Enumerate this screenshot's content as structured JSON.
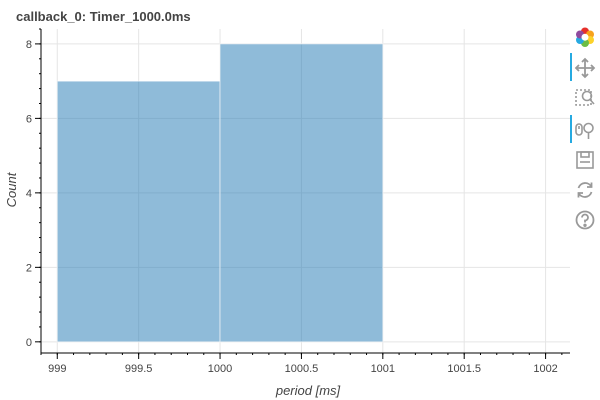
{
  "chart_data": {
    "type": "bar",
    "title": "callback_0: Timer_1000.0ms",
    "xlabel": "period [ms]",
    "ylabel": "Count",
    "bins": [
      {
        "x0": 999,
        "x1": 1000,
        "count": 7
      },
      {
        "x0": 1000,
        "x1": 1001,
        "count": 8
      }
    ],
    "xlim": [
      998.9,
      1002.15
    ],
    "ylim": [
      -0.3,
      8.4
    ],
    "xticks": [
      999,
      999.5,
      1000,
      1000.5,
      1001,
      1001.5,
      1002
    ],
    "xtick_labels": [
      "999",
      "999.5",
      "1000",
      "1000.5",
      "1001",
      "1001.5",
      "1002"
    ],
    "yticks": [
      0,
      2,
      4,
      6,
      8
    ],
    "ytick_labels": [
      "0",
      "2",
      "4",
      "6",
      "8"
    ],
    "grid": true,
    "bar_color": "#1f77b4",
    "bar_opacity": 0.5
  },
  "toolbar": {
    "tools": [
      {
        "name": "bokeh-logo",
        "icon": "bokeh-logo-icon",
        "active": false
      },
      {
        "name": "pan",
        "icon": "pan-icon",
        "active": true
      },
      {
        "name": "box-zoom",
        "icon": "box-zoom-icon",
        "active": false
      },
      {
        "name": "wheel-zoom",
        "icon": "wheel-zoom-icon",
        "active": true
      },
      {
        "name": "save",
        "icon": "save-icon",
        "active": false
      },
      {
        "name": "reset",
        "icon": "reset-icon",
        "active": false
      },
      {
        "name": "help",
        "icon": "help-icon",
        "active": false
      }
    ]
  }
}
